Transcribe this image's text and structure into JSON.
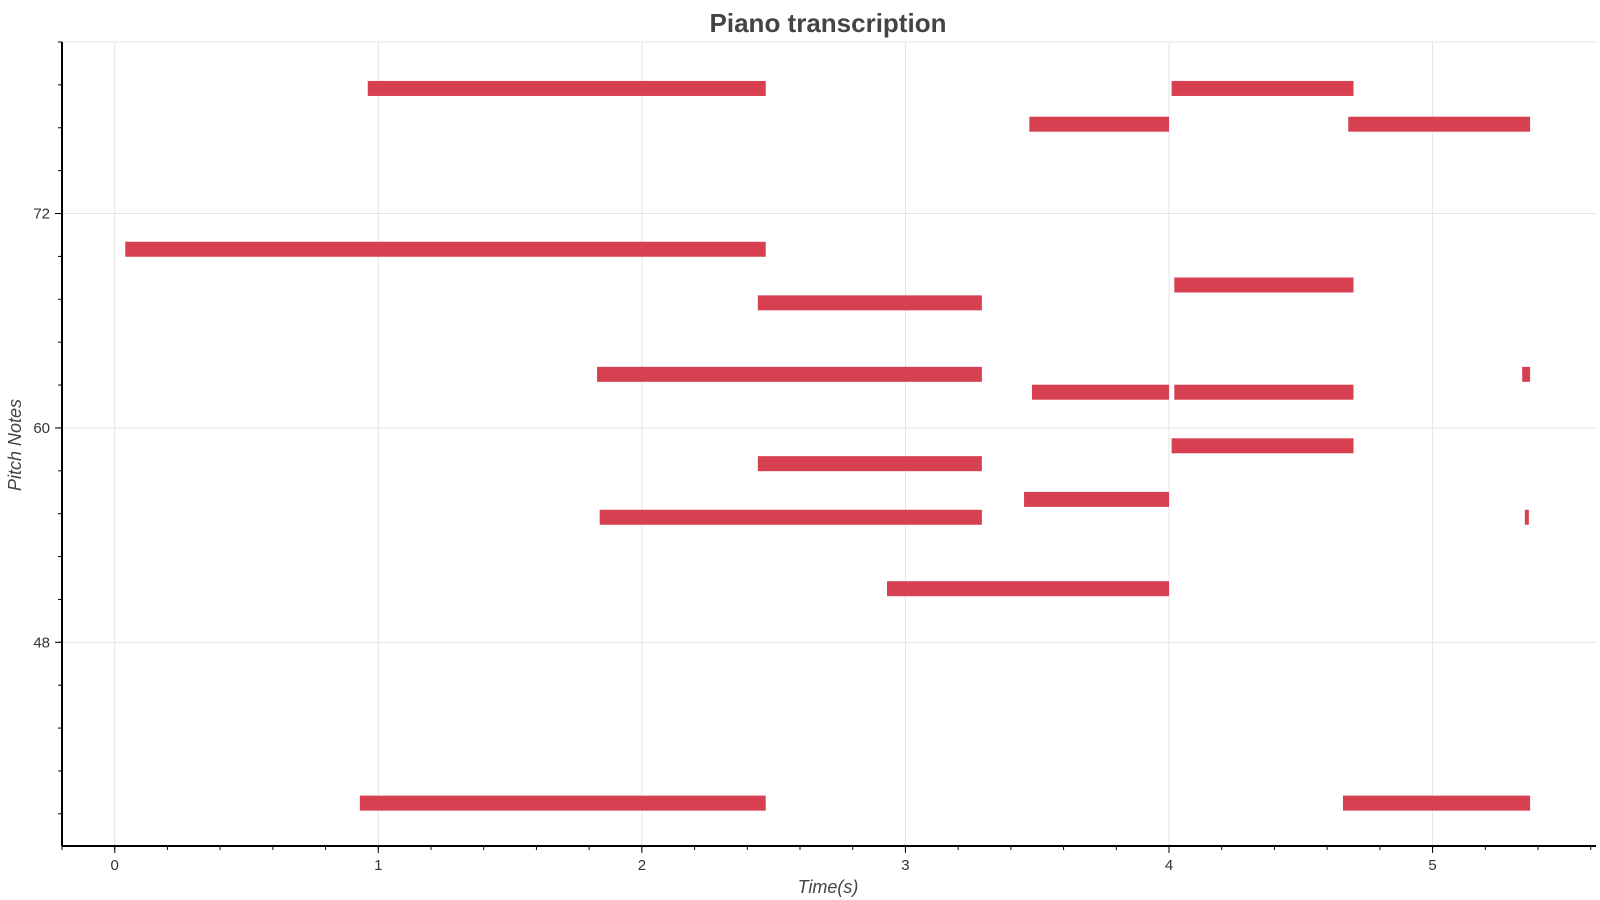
{
  "chart_data": {
    "type": "bar",
    "orientation": "horizontal-intervals",
    "title": "Piano transcription",
    "xlabel": "Time(s)",
    "ylabel": "Pitch Notes",
    "xlim": [
      -0.2,
      5.62
    ],
    "ylim": [
      36.6,
      81.6
    ],
    "x_ticks": [
      0,
      1,
      2,
      3,
      4,
      5
    ],
    "x_minor_step": 0.2,
    "y_ticks": [
      48,
      60,
      72
    ],
    "y_minor_step": 2.4,
    "grid": true,
    "legend": "none",
    "bar_color": "#d64050",
    "notes": [
      {
        "start": 0.96,
        "end": 2.47,
        "pitch": 79
      },
      {
        "start": 4.01,
        "end": 4.7,
        "pitch": 79
      },
      {
        "start": 3.47,
        "end": 4.0,
        "pitch": 77
      },
      {
        "start": 4.68,
        "end": 5.37,
        "pitch": 77
      },
      {
        "start": 0.04,
        "end": 2.47,
        "pitch": 70
      },
      {
        "start": 4.02,
        "end": 4.7,
        "pitch": 68
      },
      {
        "start": 2.44,
        "end": 3.29,
        "pitch": 67
      },
      {
        "start": 1.83,
        "end": 3.29,
        "pitch": 63
      },
      {
        "start": 5.34,
        "end": 5.37,
        "pitch": 63
      },
      {
        "start": 3.48,
        "end": 4.0,
        "pitch": 62
      },
      {
        "start": 4.02,
        "end": 4.7,
        "pitch": 62
      },
      {
        "start": 4.01,
        "end": 4.7,
        "pitch": 59
      },
      {
        "start": 2.44,
        "end": 3.29,
        "pitch": 58
      },
      {
        "start": 3.45,
        "end": 4.0,
        "pitch": 56
      },
      {
        "start": 1.84,
        "end": 3.29,
        "pitch": 55
      },
      {
        "start": 5.35,
        "end": 5.36,
        "pitch": 55
      },
      {
        "start": 2.93,
        "end": 4.0,
        "pitch": 51
      },
      {
        "start": 0.93,
        "end": 2.47,
        "pitch": 39
      },
      {
        "start": 4.66,
        "end": 5.37,
        "pitch": 39
      }
    ]
  }
}
